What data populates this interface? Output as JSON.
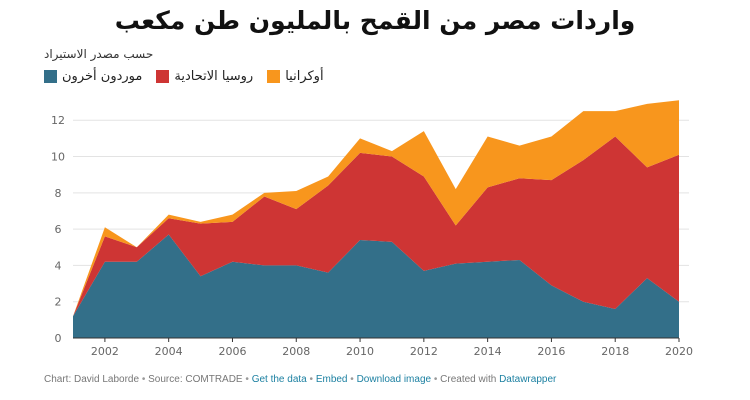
{
  "title": "واردات مصر من القمح بالمليون طن مكعب",
  "subtitle": "حسب مصدر الاستيراد",
  "footer": {
    "credit": "Chart: David Laborde",
    "source": "Source: COMTRADE",
    "get_data": "Get the data",
    "embed": "Embed",
    "download": "Download image",
    "created_with": "Created with",
    "datawrapper": "Datawrapper",
    "separator": "•"
  },
  "chart_data": {
    "type": "area",
    "stacked": true,
    "x": [
      2001,
      2002,
      2003,
      2004,
      2005,
      2006,
      2007,
      2008,
      2009,
      2010,
      2011,
      2012,
      2013,
      2014,
      2015,
      2016,
      2017,
      2018,
      2019,
      2020
    ],
    "x_ticks": [
      "2002",
      "2004",
      "2006",
      "2008",
      "2010",
      "2012",
      "2014",
      "2016",
      "2018",
      "2020"
    ],
    "y_ticks": [
      "0",
      "2",
      "4",
      "6",
      "8",
      "10",
      "12"
    ],
    "ylim": [
      0,
      13.5
    ],
    "grid": true,
    "legend_position": "top-left",
    "series": [
      {
        "name": "موردون أخرون",
        "color": "#336f89",
        "values": [
          1.2,
          4.2,
          4.2,
          5.7,
          3.4,
          4.2,
          4.0,
          4.0,
          3.6,
          5.4,
          5.3,
          3.7,
          4.1,
          4.2,
          4.3,
          2.9,
          2.0,
          1.6,
          3.3,
          2.0
        ]
      },
      {
        "name": "روسيا الاتحادية",
        "color": "#ce3534",
        "values": [
          0.0,
          1.4,
          0.8,
          0.9,
          2.9,
          2.2,
          3.8,
          3.1,
          4.8,
          4.8,
          4.7,
          5.2,
          2.1,
          4.1,
          4.5,
          5.8,
          7.8,
          9.5,
          6.1,
          8.1
        ]
      },
      {
        "name": "أوكرانيا",
        "color": "#f8961d",
        "values": [
          0.0,
          0.5,
          0.0,
          0.2,
          0.1,
          0.4,
          0.2,
          1.0,
          0.5,
          0.8,
          0.3,
          2.5,
          2.0,
          2.8,
          1.8,
          2.4,
          2.7,
          1.4,
          3.5,
          3.0
        ]
      }
    ]
  }
}
